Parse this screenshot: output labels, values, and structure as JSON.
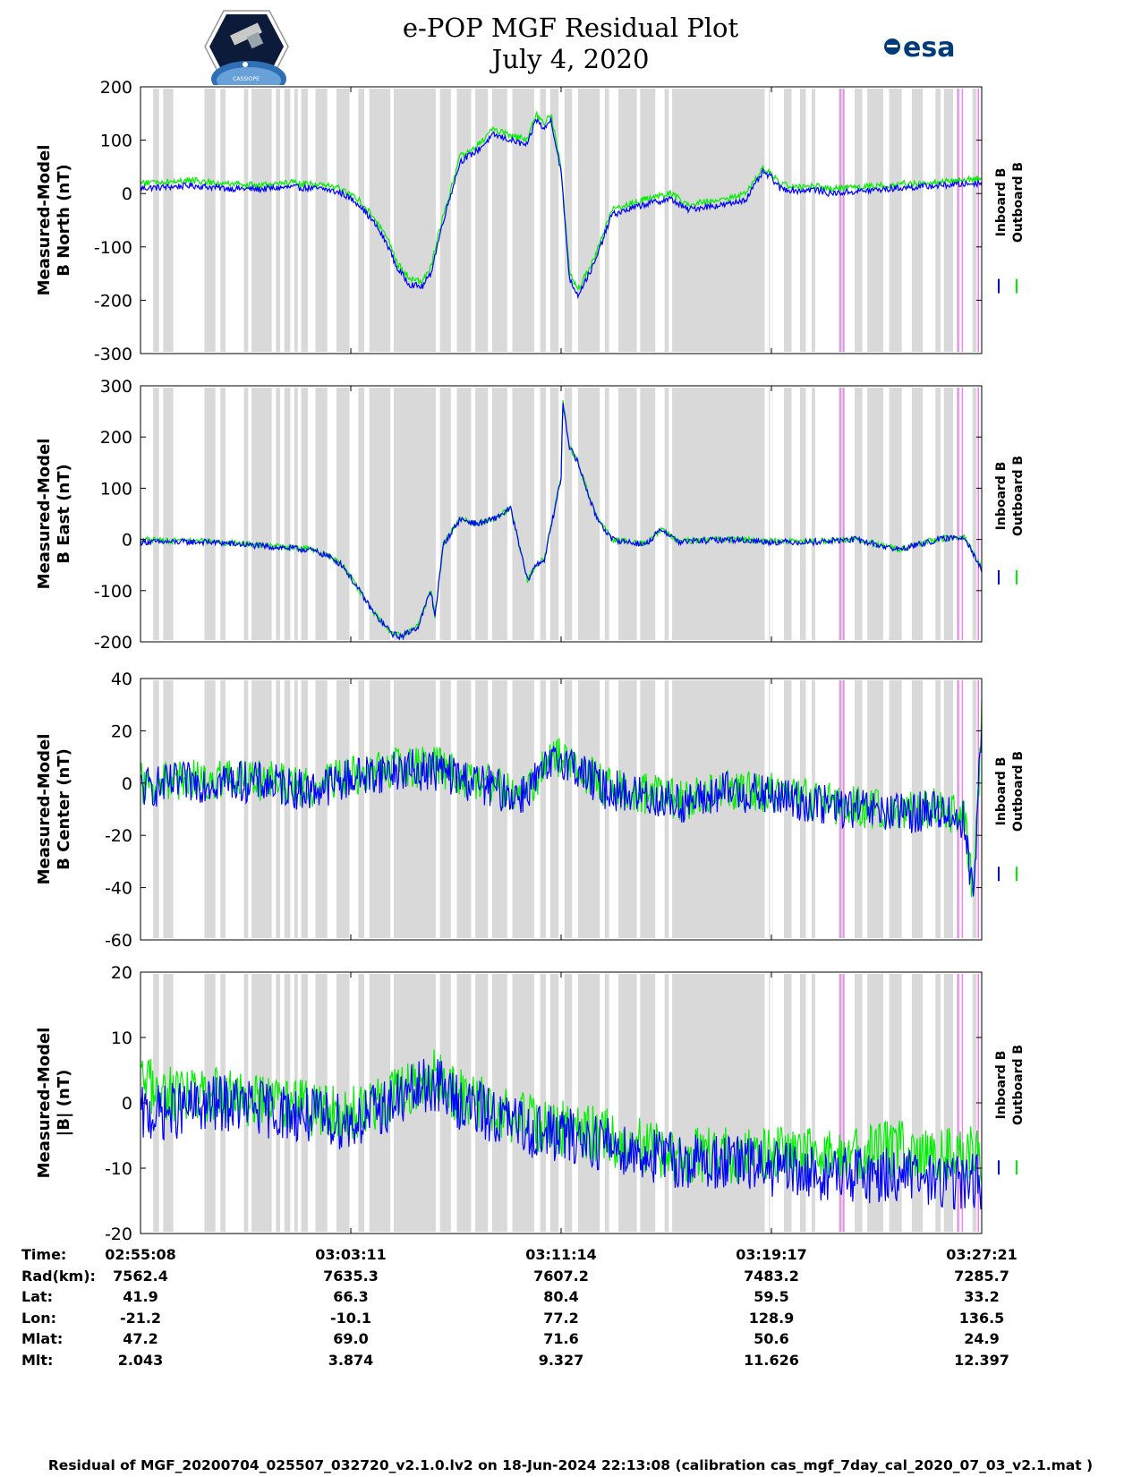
{
  "title": {
    "line1": "e-POP MGF Residual Plot",
    "line2": "July 4, 2020"
  },
  "logos": [
    {
      "name": "cassiope-logo",
      "text": "CASSIOPE"
    },
    {
      "name": "esa-logo",
      "text": "esa"
    }
  ],
  "colors": {
    "inboard": "#0000ff",
    "outboard": "#00ee00",
    "shade": "#d9d9d9",
    "magenta_marker": "#ee82ee",
    "vertical_marker": "#ffffff"
  },
  "chart_data": [
    {
      "type": "line",
      "ylabel": [
        "Measured-Model",
        "B North (nT)"
      ],
      "ylim": [
        -300,
        200
      ],
      "yticks": [
        200,
        100,
        0,
        -100,
        -200,
        -300
      ],
      "legend": [
        "Inboard B",
        "Outboard B"
      ],
      "legend_placement": "right",
      "series": [
        {
          "name": "Inboard B",
          "x": [
            0,
            0.03,
            0.06,
            0.1,
            0.14,
            0.18,
            0.22,
            0.24,
            0.26,
            0.28,
            0.295,
            0.305,
            0.32,
            0.335,
            0.345,
            0.36,
            0.38,
            0.4,
            0.42,
            0.44,
            0.46,
            0.47,
            0.48,
            0.488,
            0.5,
            0.505,
            0.51,
            0.52,
            0.54,
            0.56,
            0.6,
            0.63,
            0.65,
            0.67,
            0.7,
            0.72,
            0.74,
            0.75,
            0.76,
            0.78,
            0.8,
            0.82,
            0.9,
            0.95,
            1.0
          ],
          "y": [
            10,
            12,
            15,
            10,
            8,
            12,
            8,
            0,
            -20,
            -60,
            -100,
            -140,
            -170,
            -175,
            -150,
            -50,
            60,
            80,
            110,
            100,
            90,
            140,
            120,
            140,
            40,
            -60,
            -160,
            -190,
            -130,
            -40,
            -20,
            -10,
            -30,
            -25,
            -20,
            -10,
            40,
            30,
            10,
            5,
            8,
            0,
            10,
            15,
            20
          ]
        },
        {
          "name": "Outboard B",
          "x": [
            0,
            0.03,
            0.06,
            0.1,
            0.14,
            0.18,
            0.22,
            0.24,
            0.26,
            0.28,
            0.295,
            0.305,
            0.32,
            0.335,
            0.345,
            0.36,
            0.38,
            0.4,
            0.42,
            0.44,
            0.46,
            0.47,
            0.48,
            0.488,
            0.5,
            0.505,
            0.51,
            0.52,
            0.54,
            0.56,
            0.6,
            0.63,
            0.65,
            0.67,
            0.7,
            0.72,
            0.74,
            0.75,
            0.76,
            0.78,
            0.8,
            0.82,
            0.9,
            0.95,
            1.0
          ],
          "y": [
            20,
            22,
            25,
            18,
            15,
            20,
            15,
            8,
            -12,
            -50,
            -90,
            -130,
            -160,
            -165,
            -140,
            -40,
            70,
            90,
            120,
            110,
            100,
            150,
            130,
            150,
            50,
            -50,
            -150,
            -180,
            -120,
            -30,
            -10,
            0,
            -20,
            -15,
            -10,
            0,
            48,
            38,
            18,
            12,
            15,
            8,
            18,
            22,
            28
          ]
        }
      ]
    },
    {
      "type": "line",
      "ylabel": [
        "Measured-Model",
        "B East (nT)"
      ],
      "ylim": [
        -200,
        300
      ],
      "yticks": [
        300,
        200,
        100,
        0,
        -100,
        -200
      ],
      "legend": [
        "Inboard B",
        "Outboard B"
      ],
      "legend_placement": "right",
      "series": [
        {
          "name": "Inboard B",
          "x": [
            0,
            0.04,
            0.08,
            0.12,
            0.16,
            0.2,
            0.22,
            0.24,
            0.26,
            0.28,
            0.3,
            0.31,
            0.32,
            0.33,
            0.345,
            0.35,
            0.36,
            0.38,
            0.4,
            0.42,
            0.44,
            0.46,
            0.47,
            0.48,
            0.5,
            0.502,
            0.51,
            0.52,
            0.54,
            0.56,
            0.6,
            0.62,
            0.64,
            0.7,
            0.75,
            0.8,
            0.85,
            0.9,
            0.95,
            0.98,
            1.0
          ],
          "y": [
            -5,
            -5,
            -5,
            -10,
            -15,
            -20,
            -30,
            -50,
            -100,
            -150,
            -185,
            -190,
            -180,
            -170,
            -100,
            -150,
            -10,
            40,
            30,
            40,
            60,
            -80,
            -50,
            -40,
            120,
            270,
            180,
            150,
            50,
            0,
            -10,
            20,
            -5,
            0,
            -5,
            -5,
            0,
            -20,
            0,
            5,
            -60
          ]
        },
        {
          "name": "Outboard B",
          "x": [
            0,
            0.04,
            0.08,
            0.12,
            0.16,
            0.2,
            0.22,
            0.24,
            0.26,
            0.28,
            0.3,
            0.31,
            0.32,
            0.33,
            0.345,
            0.35,
            0.36,
            0.38,
            0.4,
            0.42,
            0.44,
            0.46,
            0.47,
            0.48,
            0.5,
            0.502,
            0.51,
            0.52,
            0.54,
            0.56,
            0.6,
            0.62,
            0.64,
            0.7,
            0.75,
            0.8,
            0.85,
            0.9,
            0.95,
            0.98,
            1.0
          ],
          "y": [
            0,
            -3,
            -4,
            -9,
            -14,
            -19,
            -29,
            -49,
            -99,
            -149,
            -184,
            -189,
            -179,
            -169,
            -99,
            -149,
            -9,
            41,
            31,
            41,
            61,
            -79,
            -49,
            -39,
            121,
            271,
            181,
            151,
            51,
            1,
            -9,
            21,
            -4,
            1,
            -4,
            -4,
            1,
            -19,
            1,
            6,
            -59
          ]
        }
      ]
    },
    {
      "type": "line",
      "ylabel": [
        "Measured-Model",
        "B Center (nT)"
      ],
      "ylim": [
        -60,
        40
      ],
      "yticks": [
        40,
        20,
        0,
        -20,
        -40,
        -60
      ],
      "legend": [
        "Inboard B",
        "Outboard B"
      ],
      "legend_placement": "right",
      "series": [
        {
          "name": "Inboard B",
          "x": [
            0,
            0.05,
            0.1,
            0.15,
            0.2,
            0.25,
            0.3,
            0.35,
            0.4,
            0.45,
            0.5,
            0.55,
            0.6,
            0.65,
            0.7,
            0.75,
            0.8,
            0.85,
            0.9,
            0.95,
            0.98,
            0.99,
            1.0
          ],
          "y": [
            -2,
            0,
            1,
            0,
            -3,
            2,
            5,
            5,
            0,
            -5,
            10,
            -2,
            -5,
            -8,
            -3,
            -5,
            -8,
            -10,
            -12,
            -10,
            -15,
            -45,
            25
          ]
        },
        {
          "name": "Outboard B",
          "x": [
            0,
            0.05,
            0.1,
            0.15,
            0.2,
            0.25,
            0.3,
            0.35,
            0.4,
            0.45,
            0.5,
            0.55,
            0.6,
            0.65,
            0.7,
            0.75,
            0.8,
            0.85,
            0.9,
            0.95,
            0.98,
            0.99,
            1.0
          ],
          "y": [
            0,
            1,
            2,
            1,
            -2,
            3,
            6,
            6,
            1,
            -4,
            11,
            -1,
            -4,
            -7,
            -2,
            -4,
            -7,
            -9,
            -11,
            -9,
            -14,
            -44,
            26
          ]
        }
      ]
    },
    {
      "type": "line",
      "ylabel": [
        "Measured-Model",
        "|B| (nT)"
      ],
      "ylim": [
        -20,
        20
      ],
      "yticks": [
        20,
        10,
        0,
        -10,
        -20
      ],
      "legend": [
        "Inboard B",
        "Outboard B"
      ],
      "legend_placement": "right",
      "series": [
        {
          "name": "Inboard B",
          "x": [
            0,
            0.05,
            0.1,
            0.15,
            0.2,
            0.25,
            0.3,
            0.33,
            0.35,
            0.38,
            0.42,
            0.46,
            0.5,
            0.55,
            0.6,
            0.65,
            0.7,
            0.75,
            0.8,
            0.85,
            0.9,
            0.95,
            1.0
          ],
          "y": [
            -2,
            -1,
            0,
            -1,
            -2,
            -3,
            0,
            2,
            3,
            0,
            -2,
            -4,
            -5,
            -6,
            -8,
            -9,
            -9,
            -10,
            -11,
            -11,
            -11,
            -12,
            -12
          ]
        },
        {
          "name": "Outboard B",
          "x": [
            0,
            0.05,
            0.1,
            0.15,
            0.2,
            0.25,
            0.3,
            0.33,
            0.35,
            0.38,
            0.42,
            0.46,
            0.5,
            0.55,
            0.6,
            0.65,
            0.7,
            0.75,
            0.8,
            0.85,
            0.9,
            0.95,
            1.0
          ],
          "y": [
            3,
            1,
            1,
            0,
            -1,
            -2,
            1,
            3,
            4,
            1,
            -1,
            -3,
            -4,
            -5,
            -7,
            -8,
            -8,
            -8,
            -8,
            -8,
            -7,
            -8,
            -8
          ]
        }
      ]
    }
  ],
  "shaded_intervals": [
    [
      0.015,
      0.022
    ],
    [
      0.027,
      0.039
    ],
    [
      0.076,
      0.089
    ],
    [
      0.095,
      0.101
    ],
    [
      0.123,
      0.128
    ],
    [
      0.132,
      0.156
    ],
    [
      0.161,
      0.166
    ],
    [
      0.171,
      0.178
    ],
    [
      0.183,
      0.187
    ],
    [
      0.191,
      0.199
    ],
    [
      0.208,
      0.222
    ],
    [
      0.233,
      0.251
    ],
    [
      0.259,
      0.266
    ],
    [
      0.272,
      0.297
    ],
    [
      0.301,
      0.351
    ],
    [
      0.356,
      0.369
    ],
    [
      0.376,
      0.393
    ],
    [
      0.398,
      0.413
    ],
    [
      0.418,
      0.436
    ],
    [
      0.442,
      0.468
    ],
    [
      0.475,
      0.482
    ],
    [
      0.487,
      0.497
    ],
    [
      0.504,
      0.513
    ],
    [
      0.52,
      0.546
    ],
    [
      0.552,
      0.557
    ],
    [
      0.568,
      0.59
    ],
    [
      0.594,
      0.612
    ],
    [
      0.623,
      0.628
    ],
    [
      0.632,
      0.742
    ],
    [
      0.747,
      0.752
    ],
    [
      0.765,
      0.774
    ],
    [
      0.784,
      0.791
    ],
    [
      0.798,
      0.802
    ],
    [
      0.83,
      0.837
    ],
    [
      0.849,
      0.858
    ],
    [
      0.864,
      0.883
    ],
    [
      0.89,
      0.905
    ],
    [
      0.917,
      0.93
    ],
    [
      0.945,
      0.951
    ],
    [
      0.955,
      0.966
    ],
    [
      0.97,
      0.974
    ],
    [
      0.989,
      0.994
    ]
  ],
  "magenta_markers": [
    0.832,
    0.836,
    0.972,
    0.977,
    0.996
  ],
  "x_ticks": [
    0,
    0.25,
    0.5,
    0.75,
    1.0
  ],
  "info_table": {
    "rows": [
      {
        "label": "Time:",
        "values": [
          "02:55:08",
          "03:03:11",
          "03:11:14",
          "03:19:17",
          "03:27:21"
        ]
      },
      {
        "label": "Rad(km):",
        "values": [
          "7562.4",
          "7635.3",
          "7607.2",
          "7483.2",
          "7285.7"
        ]
      },
      {
        "label": "Lat:",
        "values": [
          "41.9",
          "66.3",
          "80.4",
          "59.5",
          "33.2"
        ]
      },
      {
        "label": "Lon:",
        "values": [
          "-21.2",
          "-10.1",
          "77.2",
          "128.9",
          "136.5"
        ]
      },
      {
        "label": "Mlat:",
        "values": [
          "47.2",
          "69.0",
          "71.6",
          "50.6",
          "24.9"
        ]
      },
      {
        "label": "Mlt:",
        "values": [
          "2.043",
          "3.874",
          "9.327",
          "11.626",
          "12.397"
        ]
      }
    ]
  },
  "footer": "Residual of MGF_20200704_025507_032720_v2.1.0.lv2 on 18-Jun-2024 22:13:08 (calibration cas_mgf_7day_cal_2020_07_03_v2.1.mat )"
}
